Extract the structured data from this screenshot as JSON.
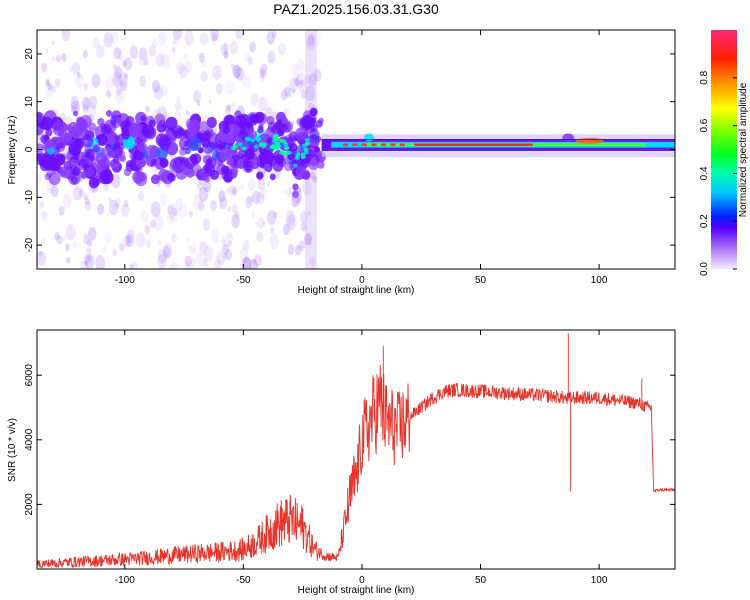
{
  "title": "PAZ1.2025.156.03.31.G30",
  "colors": {
    "snr_line": "#e8332a",
    "heat_low": "#c7a4f0",
    "heat_mid": "#00e5ff",
    "heat_high": "#e8332a",
    "band": "#7a2bff"
  },
  "chart_data": [
    {
      "type": "heatmap",
      "title": "PAZ1.2025.156.03.31.G30",
      "xlabel": "Height of straight line (km)",
      "ylabel": "Frequency (Hz)",
      "xlim": [
        -137,
        132
      ],
      "ylim": [
        -25,
        25
      ],
      "xticks": [
        -100,
        -50,
        0,
        50,
        100
      ],
      "yticks": [
        -20,
        -10,
        0,
        10,
        20
      ],
      "colorbar": {
        "label": "Normalized spectral amplitude",
        "range": [
          0,
          1
        ],
        "ticks": [
          "0.0",
          "0.2",
          "0.4",
          "0.6",
          "0.8"
        ]
      },
      "grid": false,
      "series": [
        {
          "x": [
            -135,
            -125,
            -115,
            -105,
            -95,
            -85,
            -75,
            -65,
            -55,
            -45,
            -35,
            -28,
            -22,
            -15,
            -5,
            5,
            20,
            40,
            60,
            75,
            85,
            95,
            105,
            115,
            125,
            130
          ],
          "y": [
            0,
            0.5,
            0,
            0.5,
            0,
            0,
            -0.5,
            0,
            0.5,
            2,
            1.5,
            -2,
            1.5,
            1,
            1,
            1,
            1,
            1,
            1,
            1,
            1.5,
            2,
            1.5,
            1,
            1.5,
            2
          ]
        }
      ]
    },
    {
      "type": "line",
      "xlabel": "Height of straight line (km)",
      "ylabel": "SNR (10 * v/v)",
      "xlim": [
        -137,
        132
      ],
      "ylim": [
        0,
        7400
      ],
      "xticks": [
        -100,
        -50,
        0,
        50,
        100
      ],
      "yticks": [
        2000,
        4000,
        6000
      ],
      "grid": false,
      "series": [
        {
          "x": [
            -137,
            -130,
            -120,
            -110,
            -100,
            -90,
            -80,
            -70,
            -60,
            -50,
            -45,
            -40,
            -35,
            -30,
            -25,
            -20,
            -15,
            -10,
            -5,
            -2,
            0,
            2,
            5,
            8,
            10,
            15,
            20,
            25,
            30,
            35,
            40,
            50,
            60,
            70,
            80,
            85,
            87,
            88,
            90,
            95,
            100,
            110,
            115,
            118,
            120,
            122,
            123,
            125,
            130,
            132
          ],
          "y": [
            150,
            180,
            220,
            260,
            300,
            350,
            420,
            480,
            520,
            600,
            800,
            1100,
            1400,
            1500,
            1300,
            600,
            400,
            350,
            2200,
            3000,
            4000,
            4300,
            4800,
            5200,
            4600,
            4300,
            4700,
            5000,
            5300,
            5500,
            5550,
            5500,
            5450,
            5400,
            5350,
            5300,
            5250,
            5300,
            5300,
            5300,
            5300,
            5200,
            5150,
            5100,
            5000,
            5000,
            2400,
            2450,
            2450,
            2450
          ]
        }
      ],
      "annotations": [
        {
          "x": 9,
          "y": 6900
        },
        {
          "x": 87,
          "y": 7300
        },
        {
          "x": 88,
          "y": 2400
        },
        {
          "x": 118,
          "y": 5900
        }
      ]
    }
  ]
}
